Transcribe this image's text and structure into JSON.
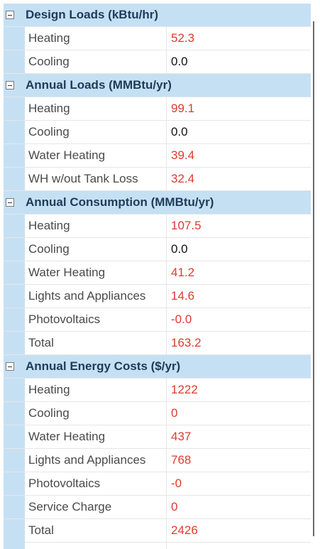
{
  "sections": [
    {
      "title": "Design Loads (kBtu/hr)",
      "rows": [
        {
          "label": "Heating",
          "value": "52.3",
          "color": "#e03a2f"
        },
        {
          "label": "Cooling",
          "value": "0.0",
          "color": "#111111"
        }
      ]
    },
    {
      "title": "Annual Loads (MMBtu/yr)",
      "rows": [
        {
          "label": "Heating",
          "value": "99.1",
          "color": "#e03a2f"
        },
        {
          "label": "Cooling",
          "value": "0.0",
          "color": "#111111"
        },
        {
          "label": "Water Heating",
          "value": "39.4",
          "color": "#e03a2f"
        },
        {
          "label": "WH w/out Tank Loss",
          "value": "32.4",
          "color": "#e03a2f"
        }
      ]
    },
    {
      "title": "Annual Consumption (MMBtu/yr)",
      "rows": [
        {
          "label": "Heating",
          "value": "107.5",
          "color": "#e03a2f"
        },
        {
          "label": "Cooling",
          "value": "0.0",
          "color": "#111111"
        },
        {
          "label": "Water Heating",
          "value": "41.2",
          "color": "#e03a2f"
        },
        {
          "label": "Lights and Appliances",
          "value": "14.6",
          "color": "#e03a2f"
        },
        {
          "label": "Photovoltaics",
          "value": "-0.0",
          "color": "#e03a2f"
        },
        {
          "label": "Total",
          "value": "163.2",
          "color": "#e03a2f"
        }
      ]
    },
    {
      "title": "Annual Energy Costs ($/yr)",
      "rows": [
        {
          "label": "Heating",
          "value": "1222",
          "color": "#e03a2f"
        },
        {
          "label": "Cooling",
          "value": "0",
          "color": "#e03a2f"
        },
        {
          "label": "Water Heating",
          "value": "437",
          "color": "#e03a2f"
        },
        {
          "label": "Lights and Appliances",
          "value": "768",
          "color": "#e03a2f"
        },
        {
          "label": "Photovoltaics",
          "value": "-0",
          "color": "#e03a2f"
        },
        {
          "label": "Service Charge",
          "value": "0",
          "color": "#e03a2f"
        },
        {
          "label": "Total",
          "value": "2426",
          "color": "#e03a2f"
        }
      ]
    }
  ],
  "colors": {
    "category_background": "#c6e0f3",
    "category_text": "#1f3b5a",
    "label_text": "#4a4a4a",
    "value_red": "#e03a2f",
    "value_black": "#111111"
  },
  "icons": {
    "collapse": "minus-box-icon"
  }
}
